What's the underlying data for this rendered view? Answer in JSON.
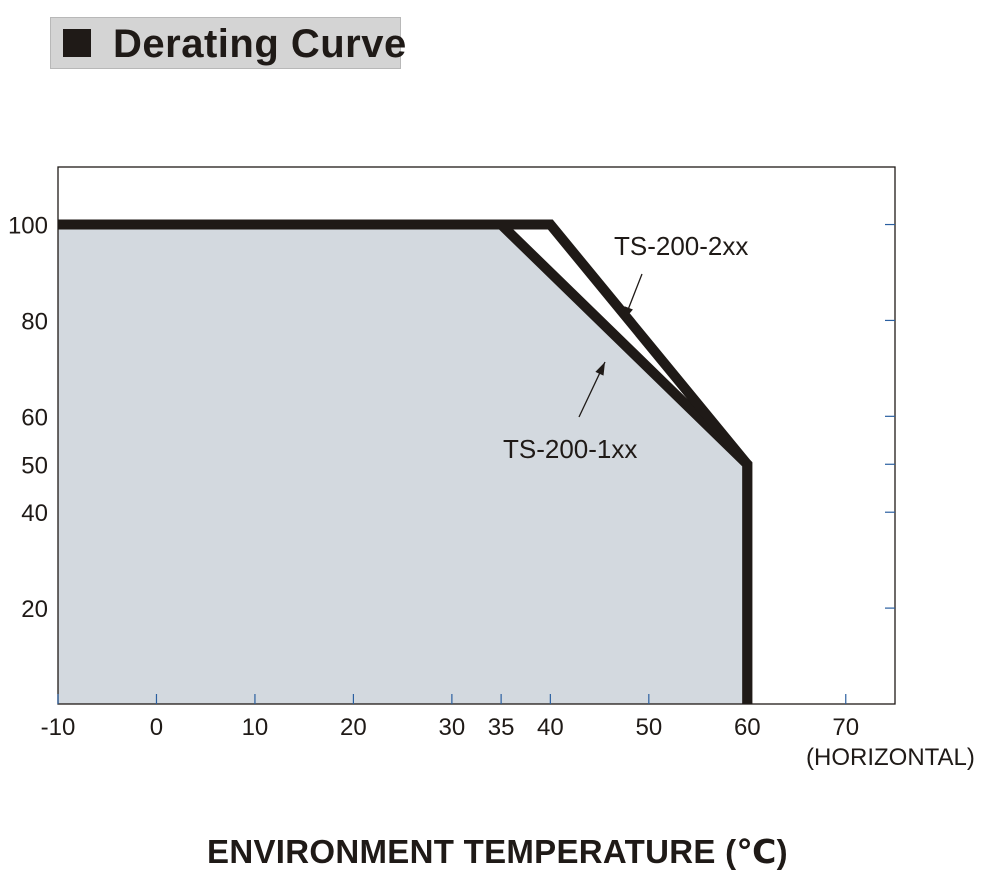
{
  "header": {
    "title": "Derating Curve"
  },
  "chart_data": {
    "type": "line",
    "title": "Derating Curve",
    "xlabel": "ENVIRONMENT TEMPERATURE (℃)",
    "xunit_note": "(HORIZONTAL)",
    "ylabel": "",
    "xlim": [
      -10,
      75
    ],
    "ylim": [
      0,
      112
    ],
    "x_ticks": [
      -10,
      0,
      10,
      20,
      30,
      35,
      40,
      50,
      60,
      70
    ],
    "y_ticks": [
      20,
      40,
      50,
      60,
      80,
      100
    ],
    "grid": false,
    "series": [
      {
        "name": "TS-200-1xx",
        "x": [
          -10,
          35,
          60,
          60
        ],
        "y": [
          100,
          100,
          50,
          0
        ],
        "filled": true
      },
      {
        "name": "TS-200-2xx",
        "x": [
          -10,
          40,
          60,
          60
        ],
        "y": [
          100,
          100,
          50,
          0
        ],
        "filled": false
      }
    ],
    "colors": {
      "line": "#1f1a17",
      "fill": "#d3d9df",
      "axis": "#1f1a17",
      "tick": "#2a5fa0"
    }
  }
}
